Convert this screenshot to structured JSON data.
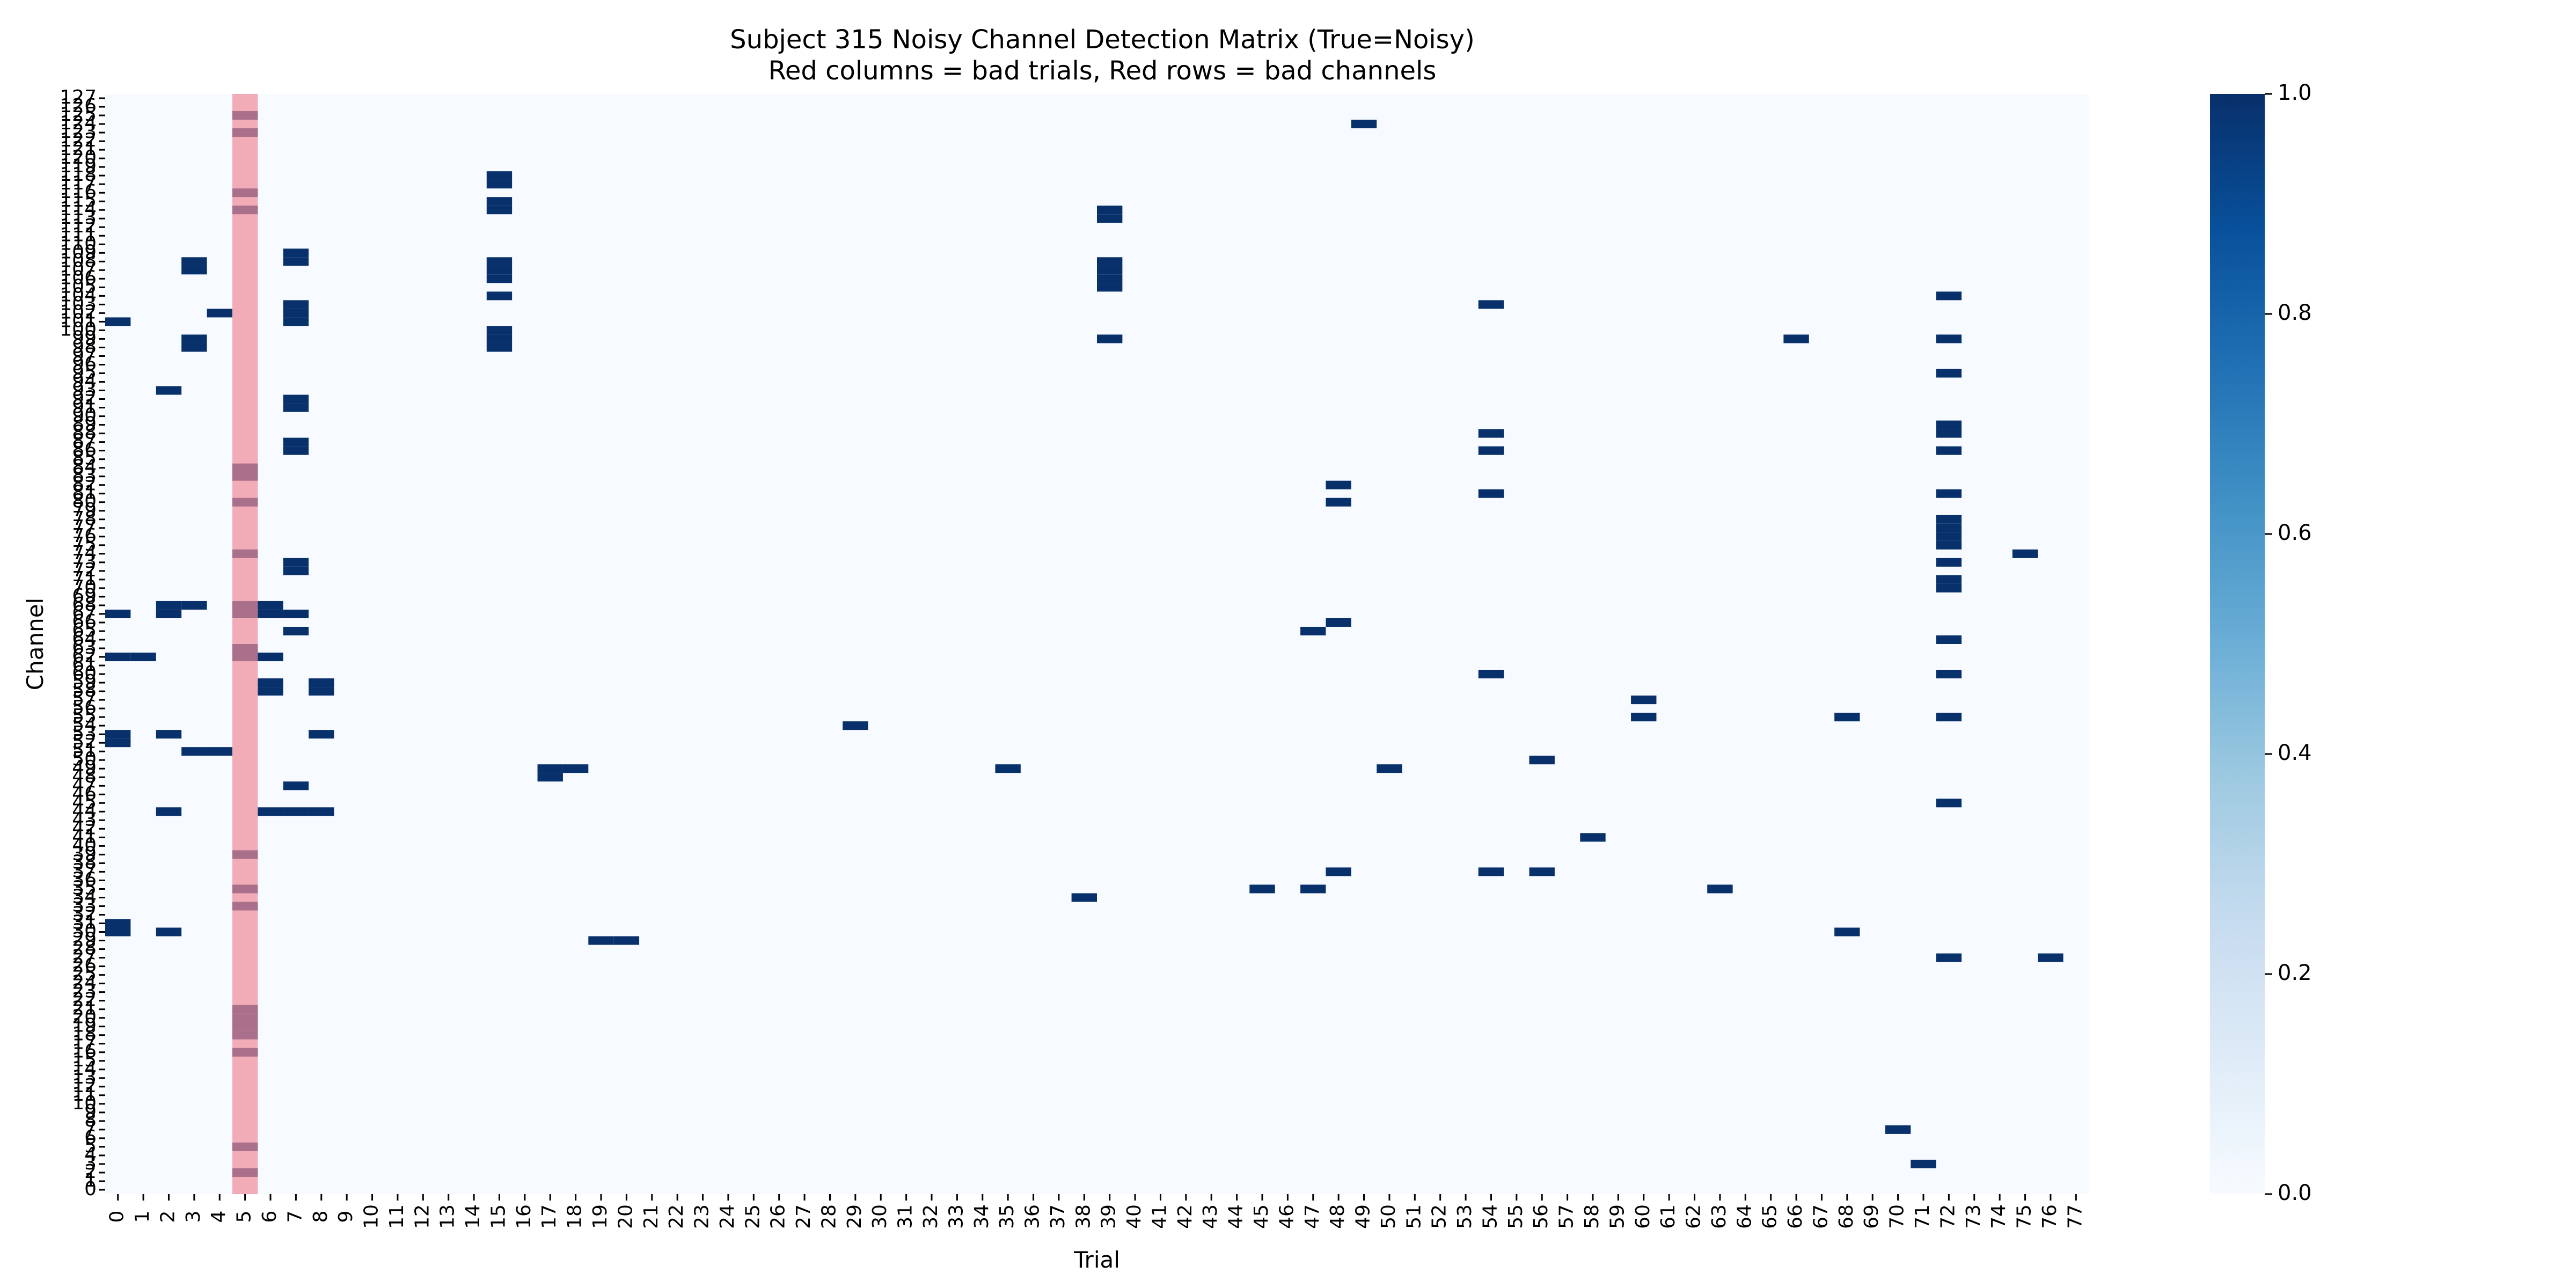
{
  "chart_data": {
    "type": "heatmap",
    "title": "Subject 315 Noisy Channel Detection Matrix (True=Noisy)",
    "subtitle": "Red columns = bad trials, Red rows = bad channels",
    "xlabel": "Trial",
    "ylabel": "Channel",
    "n_trials": 78,
    "n_channels": 128,
    "x_categories": [
      0,
      1,
      2,
      3,
      4,
      5,
      6,
      7,
      8,
      9,
      10,
      11,
      12,
      13,
      14,
      15,
      16,
      17,
      18,
      19,
      20,
      21,
      22,
      23,
      24,
      25,
      26,
      27,
      28,
      29,
      30,
      31,
      32,
      33,
      34,
      35,
      36,
      37,
      38,
      39,
      40,
      41,
      42,
      43,
      44,
      45,
      46,
      47,
      48,
      49,
      50,
      51,
      52,
      53,
      54,
      55,
      56,
      57,
      58,
      59,
      60,
      61,
      62,
      63,
      64,
      65,
      66,
      67,
      68,
      69,
      70,
      71,
      72,
      73,
      74,
      75,
      76,
      77
    ],
    "y_categories": [
      0,
      1,
      2,
      3,
      4,
      5,
      6,
      7,
      8,
      9,
      10,
      11,
      12,
      13,
      14,
      15,
      16,
      17,
      18,
      19,
      20,
      21,
      22,
      23,
      24,
      25,
      26,
      27,
      28,
      29,
      30,
      31,
      32,
      33,
      34,
      35,
      36,
      37,
      38,
      39,
      40,
      41,
      42,
      43,
      44,
      45,
      46,
      47,
      48,
      49,
      50,
      51,
      52,
      53,
      54,
      55,
      56,
      57,
      58,
      59,
      60,
      61,
      62,
      63,
      64,
      65,
      66,
      67,
      68,
      69,
      70,
      71,
      72,
      73,
      74,
      75,
      76,
      77,
      78,
      79,
      80,
      81,
      82,
      83,
      84,
      85,
      86,
      87,
      88,
      89,
      90,
      91,
      92,
      93,
      94,
      95,
      96,
      97,
      98,
      99,
      100,
      101,
      102,
      103,
      104,
      105,
      106,
      107,
      108,
      109,
      110,
      111,
      112,
      113,
      114,
      115,
      116,
      117,
      118,
      119,
      120,
      121,
      122,
      123,
      124,
      125,
      126,
      127
    ],
    "y_order": "descending-top-to-bottom",
    "value_range": [
      0,
      1
    ],
    "colormap": [
      "#f7fbff",
      "#deebf7",
      "#c6dbef",
      "#9ecae1",
      "#6baed6",
      "#4292c6",
      "#2171b5",
      "#08519c",
      "#08306b"
    ],
    "colorbar_ticks": [
      "0.0",
      "0.2",
      "0.4",
      "0.6",
      "0.8",
      "1.0"
    ],
    "bad_trials": [
      5
    ],
    "bad_channels": [],
    "highlight_color": "#f08a99",
    "noisy_cells": {
      "0": [
        30,
        31,
        52,
        53,
        62,
        67,
        101
      ],
      "1": [
        62
      ],
      "2": [
        30,
        44,
        53,
        67,
        68,
        93
      ],
      "3": [
        51,
        68,
        98,
        99,
        107,
        108
      ],
      "4": [
        51,
        102
      ],
      "5": [
        2,
        5,
        16,
        18,
        19,
        20,
        21,
        33,
        35,
        39,
        62,
        63,
        67,
        68,
        74,
        80,
        83,
        84,
        114,
        116,
        123,
        125
      ],
      "6": [
        44,
        58,
        59,
        62,
        67,
        68
      ],
      "7": [
        44,
        47,
        65,
        67,
        72,
        73,
        86,
        87,
        91,
        92,
        101,
        102,
        103,
        108,
        109
      ],
      "8": [
        44,
        53,
        58,
        59
      ],
      "15": [
        98,
        99,
        100,
        104,
        106,
        107,
        108,
        114,
        115,
        117,
        118
      ],
      "17": [
        48,
        49
      ],
      "18": [
        49
      ],
      "19": [
        29
      ],
      "20": [
        29
      ],
      "29": [
        54
      ],
      "35": [
        49
      ],
      "38": [
        34
      ],
      "39": [
        99,
        105,
        106,
        107,
        108,
        113,
        114
      ],
      "45": [
        35
      ],
      "47": [
        35,
        65
      ],
      "48": [
        37,
        66,
        80,
        82
      ],
      "49": [
        124
      ],
      "50": [
        49
      ],
      "54": [
        37,
        60,
        81,
        86,
        88,
        103
      ],
      "56": [
        37,
        50
      ],
      "58": [
        41
      ],
      "60": [
        55,
        57
      ],
      "63": [
        35
      ],
      "66": [
        99
      ],
      "68": [
        30,
        55
      ],
      "70": [
        7
      ],
      "71": [
        3
      ],
      "72": [
        27,
        45,
        55,
        60,
        64,
        70,
        71,
        73,
        75,
        76,
        77,
        78,
        81,
        86,
        88,
        89,
        95,
        99,
        104
      ],
      "75": [
        74
      ],
      "76": [
        27
      ]
    }
  }
}
